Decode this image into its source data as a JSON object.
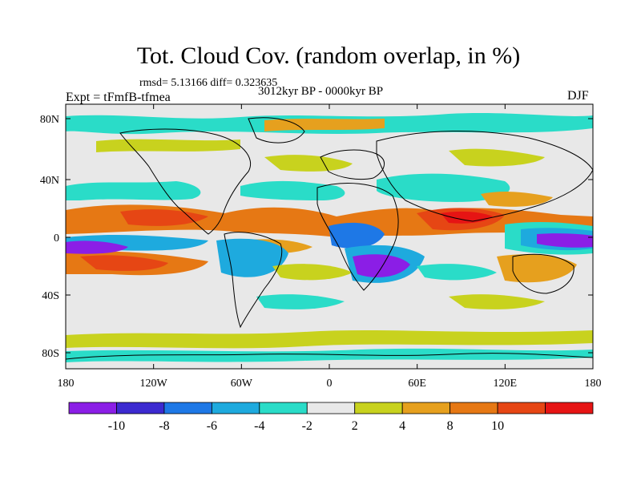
{
  "title": "Tot. Cloud Cov. (random overlap, in %)",
  "stats": "rmsd= 5.13166 diff= 0.323635",
  "experiment": "Expt = tFmfB-tfmea",
  "period": "3012kyr BP - 0000kyr BP",
  "season": "DJF",
  "map": {
    "lon_labels": [
      "180",
      "120W",
      "60W",
      "0",
      "60E",
      "120E",
      "180"
    ],
    "lat_labels": [
      "80N",
      "40N",
      "0",
      "40S",
      "80S"
    ],
    "background_color": "#e8e8e8"
  },
  "colorbar": {
    "colors": [
      "#8b1ee6",
      "#3c2ad0",
      "#1e78e6",
      "#1eaade",
      "#2adcc8",
      "#e8e8e8",
      "#c8d21e",
      "#e6a01e",
      "#e67814",
      "#e64614",
      "#e61414"
    ],
    "labels": [
      "-10",
      "-8",
      "-6",
      "-4",
      "-2",
      "2",
      "4",
      "8",
      "10"
    ]
  }
}
